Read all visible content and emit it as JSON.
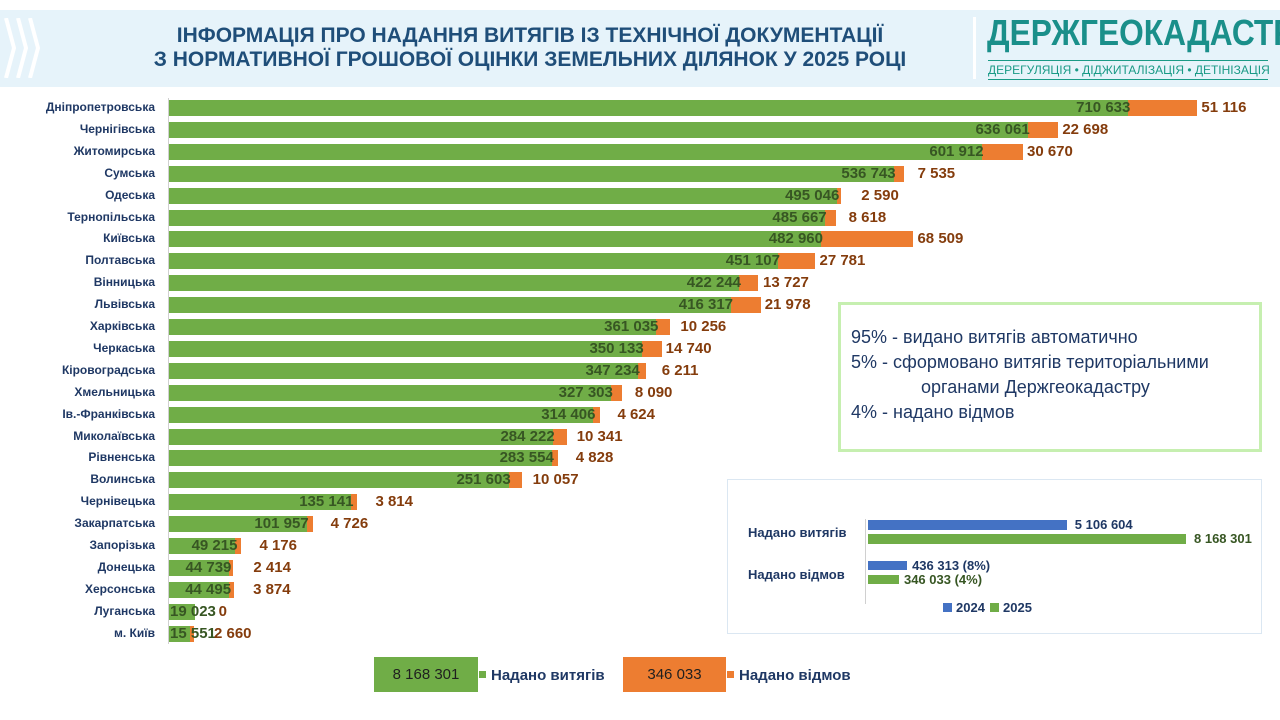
{
  "header": {
    "title_line1": "ІНФОРМАЦІЯ ПРО НАДАННЯ ВИТЯГІВ ІЗ ТЕХНІЧНОЇ ДОКУМЕНТАЦІЇ",
    "title_line2": "З НОРМАТИВНОЇ ГРОШОВОЇ ОЦІНКИ ЗЕМЕЛЬНИХ ДІЛЯНОК У 2025 РОЦІ",
    "logo": "ДЕРЖГЕОКАДАСТР",
    "logo_sub": "ДЕРЕГУЛЯЦІЯ • ДІДЖИТАЛІЗАЦІЯ • ДЕТІНІЗАЦІЯ"
  },
  "colors": {
    "issued": "#70ad47",
    "refused": "#ed7d31",
    "y2024": "#4472c4",
    "y2025": "#70ad47",
    "title": "#1f4e79"
  },
  "chart_data": [
    {
      "type": "bar",
      "orientation": "horizontal",
      "stacked": true,
      "categories": [
        "Дніпропетровська",
        "Чернігівська",
        "Житомирська",
        "Сумська",
        "Одеська",
        "Тернопільська",
        "Київська",
        "Полтавська",
        "Вінницька",
        "Львівська",
        "Харківська",
        "Черкаська",
        "Кіровоградська",
        "Хмельницька",
        "Ів.-Франківська",
        "Миколаївська",
        "Рівненська",
        "Волинська",
        "Чернівецька",
        "Закарпатська",
        "Запорізька",
        "Донецька",
        "Херсонська",
        "Луганська",
        "м. Київ"
      ],
      "series": [
        {
          "name": "Надано витягів",
          "total": "8 168 301",
          "values": [
            710633,
            636061,
            601912,
            536743,
            495046,
            485667,
            482960,
            451107,
            422244,
            416317,
            361035,
            350133,
            347234,
            327303,
            314406,
            284222,
            283554,
            251603,
            135141,
            101957,
            49215,
            44739,
            44495,
            19023,
            15551
          ]
        },
        {
          "name": "Надано відмов",
          "total": "346 033",
          "values": [
            51116,
            22698,
            30670,
            7535,
            2590,
            8618,
            68509,
            27781,
            13727,
            21978,
            10256,
            14740,
            6211,
            8090,
            4624,
            10341,
            4828,
            10057,
            3814,
            4726,
            4176,
            2414,
            3874,
            0,
            2660
          ]
        }
      ],
      "grid": false,
      "legend": "bottom"
    },
    {
      "type": "bar",
      "orientation": "horizontal",
      "categories": [
        "Надано витягів",
        "Надано відмов"
      ],
      "series": [
        {
          "name": "2024",
          "values": [
            5106604,
            436313
          ],
          "labels": [
            "5 106 604",
            "436 313 (8%)"
          ]
        },
        {
          "name": "2025",
          "values": [
            8168301,
            346033
          ],
          "labels": [
            "8 168 301",
            "346 033  (4%)"
          ]
        }
      ],
      "legend": "bottom"
    }
  ],
  "note": {
    "line1": "95% - видано витягів автоматично",
    "line2": "5% - сформовано витягів територіальними",
    "line3": "органами Держгеокадастру",
    "line4": "4% - надано відмов"
  }
}
